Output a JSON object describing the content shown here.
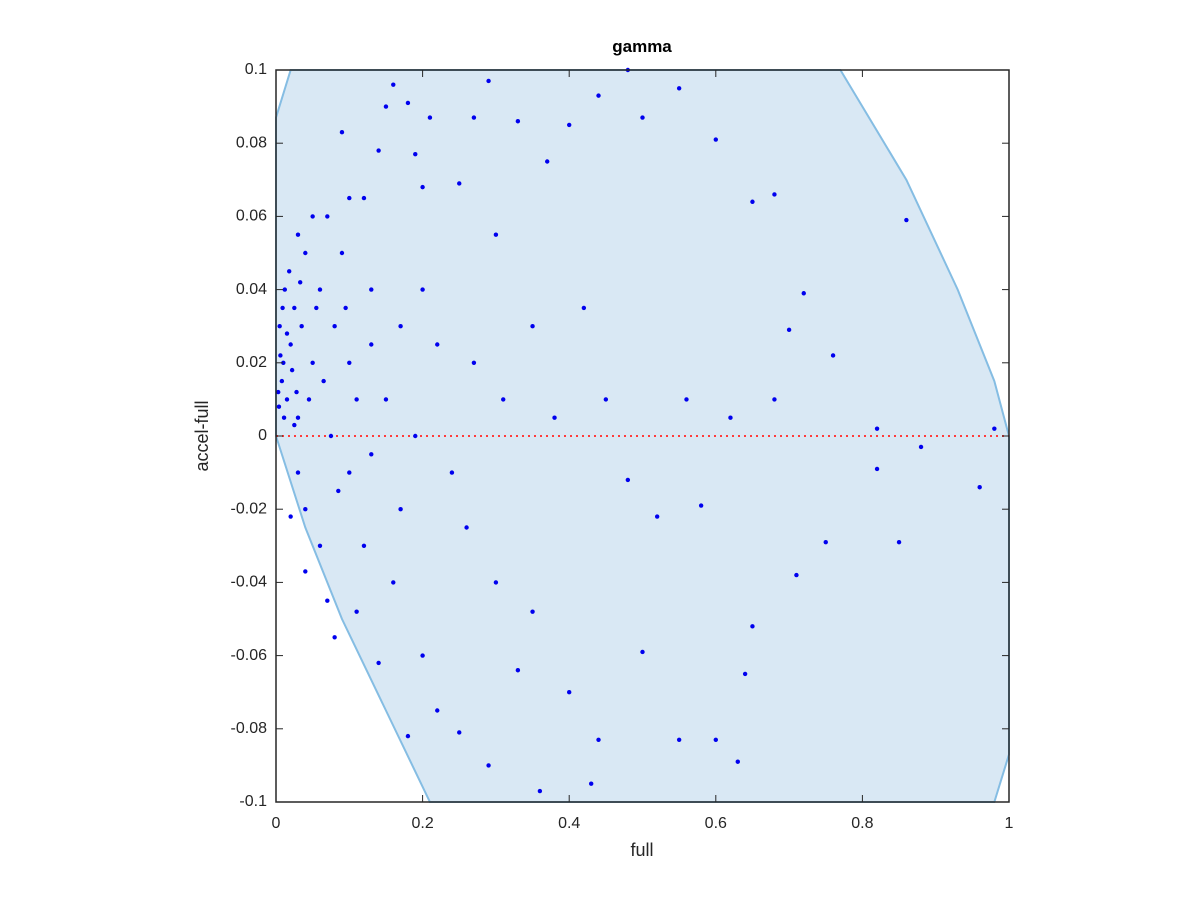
{
  "chart_data": {
    "type": "scatter",
    "title": "gamma",
    "xlabel": "full",
    "ylabel": "accel-full",
    "xlim": [
      0,
      1
    ],
    "ylim": [
      -0.1,
      0.1
    ],
    "xticks": [
      0,
      0.2,
      0.4,
      0.6,
      0.8,
      1
    ],
    "yticks": [
      -0.1,
      -0.08,
      -0.06,
      -0.04,
      -0.02,
      0,
      0.02,
      0.04,
      0.06,
      0.08,
      0.1
    ],
    "region": {
      "color": "#d9e8f4",
      "edge_color": "#85bde3",
      "x": [
        0,
        0.02,
        0.77,
        0.86,
        0.93,
        0.98,
        1,
        1,
        0.98,
        0.21,
        0.15,
        0.09,
        0.04,
        0
      ],
      "y": [
        0.087,
        0.1,
        0.1,
        0.07,
        0.04,
        0.015,
        0,
        -0.087,
        -0.1,
        -0.1,
        -0.075,
        -0.05,
        -0.025,
        0
      ]
    },
    "reference_line": {
      "y": 0,
      "color": "#ff3b3b"
    },
    "series": [
      {
        "color": "#0000ee",
        "x": [
          0.01,
          0.005,
          0.015,
          0.02,
          0.008,
          0.012,
          0.025,
          0.03,
          0.018,
          0.004,
          0.022,
          0.035,
          0.04,
          0.045,
          0.05,
          0.03,
          0.04,
          0.06,
          0.07,
          0.08,
          0.09,
          0.1,
          0.1,
          0.12,
          0.13,
          0.15,
          0.06,
          0.08,
          0.09,
          0.11,
          0.14,
          0.15,
          0.16,
          0.18,
          0.19,
          0.2,
          0.21,
          0.17,
          0.18,
          0.2,
          0.22,
          0.25,
          0.27,
          0.29,
          0.3,
          0.33,
          0.35,
          0.37,
          0.4,
          0.44,
          0.48,
          0.5,
          0.55,
          0.6,
          0.65,
          0.68,
          0.72,
          0.76,
          0.86,
          0.98,
          0.82,
          0.82,
          0.88,
          0.96,
          0.85,
          0.75,
          0.71,
          0.65,
          0.64,
          0.63,
          0.6,
          0.55,
          0.44,
          0.43,
          0.36,
          0.29,
          0.25,
          0.4,
          0.33,
          0.3,
          0.26,
          0.24,
          0.27,
          0.31,
          0.35,
          0.38,
          0.42,
          0.45,
          0.5,
          0.52,
          0.56,
          0.58,
          0.62,
          0.68,
          0.7,
          0.48,
          0.2,
          0.22,
          0.16,
          0.12,
          0.14,
          0.1,
          0.05,
          0.03,
          0.02,
          0.04,
          0.07,
          0.025,
          0.015,
          0.006,
          0.009,
          0.003,
          0.028,
          0.033,
          0.011,
          0.055,
          0.065,
          0.075,
          0.085,
          0.095,
          0.11,
          0.13,
          0.13,
          0.17,
          0.19
        ],
        "y": [
          0.02,
          0.03,
          0.01,
          0.025,
          0.015,
          0.04,
          0.035,
          0.005,
          0.045,
          0.008,
          0.018,
          0.03,
          0.05,
          0.01,
          0.02,
          -0.01,
          -0.02,
          0.04,
          0.06,
          0.03,
          0.05,
          0.02,
          -0.01,
          0.065,
          0.04,
          0.01,
          -0.03,
          -0.055,
          0.083,
          -0.048,
          0.078,
          0.09,
          0.096,
          0.091,
          0.077,
          0.068,
          0.087,
          -0.02,
          -0.082,
          -0.06,
          -0.075,
          0.069,
          0.087,
          0.097,
          0.055,
          0.086,
          0.03,
          0.075,
          0.085,
          0.093,
          0.1,
          0.087,
          0.095,
          0.081,
          0.064,
          0.066,
          0.039,
          0.022,
          0.059,
          0.002,
          0.002,
          -0.009,
          -0.003,
          -0.014,
          -0.029,
          -0.029,
          -0.038,
          -0.052,
          -0.065,
          -0.089,
          -0.083,
          -0.083,
          -0.083,
          -0.095,
          -0.097,
          -0.09,
          -0.081,
          -0.07,
          -0.064,
          -0.04,
          -0.025,
          -0.01,
          0.02,
          0.01,
          -0.048,
          0.005,
          0.035,
          0.01,
          -0.059,
          -0.022,
          0.01,
          -0.019,
          0.005,
          0.01,
          0.029,
          -0.012,
          0.04,
          0.025,
          -0.04,
          -0.03,
          -0.062,
          0.065,
          0.06,
          0.055,
          -0.022,
          -0.037,
          -0.045,
          0.003,
          0.028,
          0.022,
          0.035,
          0.012,
          0.012,
          0.042,
          0.005,
          0.035,
          0.015,
          0,
          -0.015,
          0.035,
          0.01,
          -0.005,
          0.025,
          0.03,
          0
        ]
      }
    ]
  }
}
